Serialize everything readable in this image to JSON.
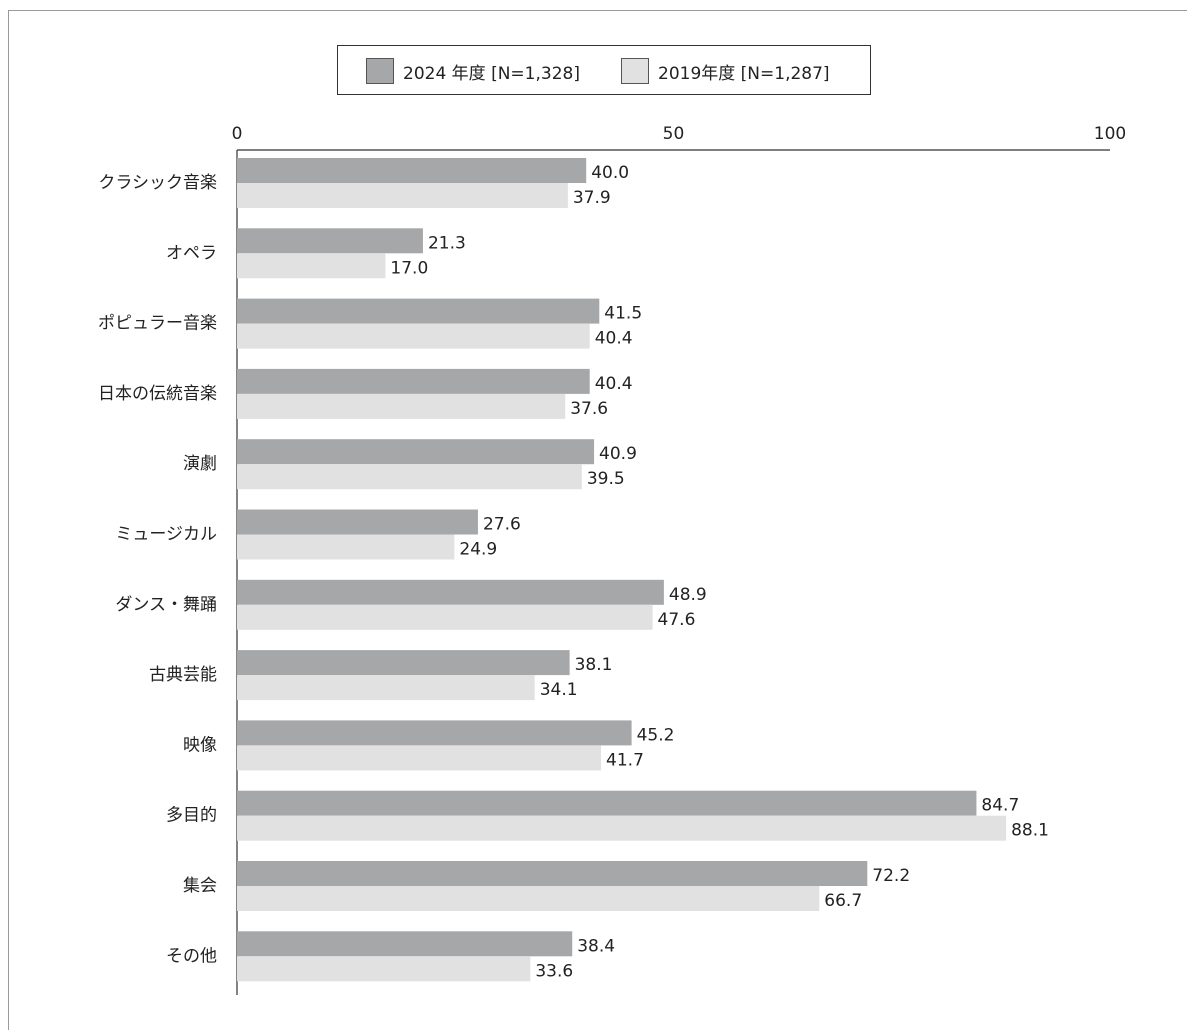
{
  "legend": {
    "series_2024": "2024 年度 [N=1,328]",
    "series_2019": "2019年度 [N=1,287]"
  },
  "colors": {
    "series_2024": "#a6a7a9",
    "series_2019": "#e1e1e2",
    "axis": "#333333"
  },
  "chart_data": {
    "type": "bar",
    "orientation": "horizontal",
    "title": "",
    "xlabel": "",
    "ylabel": "",
    "xlim": [
      0,
      100
    ],
    "x_ticks": [
      "0",
      "50",
      "100"
    ],
    "grid": false,
    "legend_position": "top",
    "categories": [
      "クラシック音楽",
      "オペラ",
      "ポピュラー音楽",
      "日本の伝統音楽",
      "演劇",
      "ミュージカル",
      "ダンス・舞踊",
      "古典芸能",
      "映像",
      "多目的",
      "集会",
      "その他"
    ],
    "series": [
      {
        "name": "2024 年度 [N=1,328]",
        "values": [
          40.0,
          21.3,
          41.5,
          40.4,
          40.9,
          27.6,
          48.9,
          38.1,
          45.2,
          84.7,
          72.2,
          38.4
        ],
        "labels": [
          "40.0",
          "21.3",
          "41.5",
          "40.4",
          "40.9",
          "27.6",
          "48.9",
          "38.1",
          "45.2",
          "84.7",
          "72.2",
          "38.4"
        ]
      },
      {
        "name": "2019年度 [N=1,287]",
        "values": [
          37.9,
          17.0,
          40.4,
          37.6,
          39.5,
          24.9,
          47.6,
          34.1,
          41.7,
          88.1,
          66.7,
          33.6
        ],
        "labels": [
          "37.9",
          "17.0",
          "40.4",
          "37.6",
          "39.5",
          "24.9",
          "47.6",
          "34.1",
          "41.7",
          "88.1",
          "66.7",
          "33.6"
        ]
      }
    ]
  }
}
